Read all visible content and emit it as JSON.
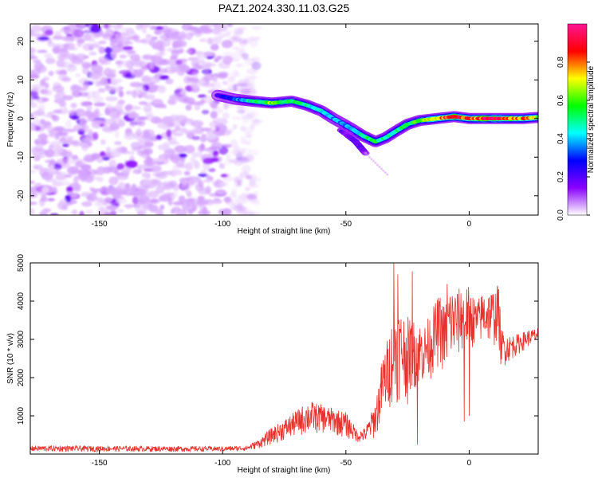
{
  "title": "PAZ1.2024.330.11.03.G25",
  "chart_data": [
    {
      "type": "heatmap",
      "xlabel": "Height of straight line (km)",
      "ylabel": "Frequency (Hz)",
      "xlim": [
        -178,
        28
      ],
      "ylim": [
        -25,
        24.5
      ],
      "xticks": [
        -150,
        -100,
        -50,
        0
      ],
      "yticks": [
        -20,
        -10,
        0,
        10,
        20
      ],
      "colorbar": {
        "label": "Normalized spectral amplitude",
        "range": [
          0,
          1
        ],
        "ticks": [
          "0.0",
          "0.2",
          "0.4",
          "0.6",
          "0.8"
        ],
        "colors": [
          "#ffffff",
          "#8a00ff",
          "#0000ff",
          "#00ffff",
          "#00ff00",
          "#ffff00",
          "#ff0000",
          "#ff1493"
        ]
      },
      "noise_region": {
        "x": [
          -178,
          -86
        ],
        "y": [
          -25,
          24.5
        ],
        "amplitude": [
          0.05,
          0.2
        ]
      },
      "ridge": [
        {
          "x": -102,
          "y": 6
        },
        {
          "x": -95,
          "y": 5
        },
        {
          "x": -88,
          "y": 4.5
        },
        {
          "x": -80,
          "y": 4
        },
        {
          "x": -72,
          "y": 4.5
        },
        {
          "x": -66,
          "y": 3.5
        },
        {
          "x": -60,
          "y": 2
        },
        {
          "x": -55,
          "y": 0
        },
        {
          "x": -48,
          "y": -2.5
        },
        {
          "x": -43,
          "y": -4.5
        },
        {
          "x": -38,
          "y": -6
        },
        {
          "x": -34,
          "y": -5
        },
        {
          "x": -29,
          "y": -3
        },
        {
          "x": -25,
          "y": -1.5
        },
        {
          "x": -20,
          "y": -0.5
        },
        {
          "x": -13,
          "y": 0
        },
        {
          "x": -6,
          "y": 0.5
        },
        {
          "x": 0,
          "y": 0
        },
        {
          "x": 8,
          "y": 0
        },
        {
          "x": 16,
          "y": 0
        },
        {
          "x": 22,
          "y": 0
        },
        {
          "x": 28,
          "y": 0.3
        }
      ],
      "ridge_amplitude": [
        0.2,
        0.3,
        0.45,
        0.6,
        0.5,
        0.45,
        0.4,
        0.35,
        0.35,
        0.45,
        0.5,
        0.45,
        0.45,
        0.5,
        0.55,
        0.7,
        0.85,
        0.75,
        0.9,
        0.8,
        0.75,
        0.6
      ],
      "side_branch": [
        {
          "x": -52,
          "y": -3
        },
        {
          "x": -46,
          "y": -6
        },
        {
          "x": -42,
          "y": -9
        }
      ]
    },
    {
      "type": "line",
      "xlabel": "Height of straight line (km)",
      "ylabel": "SNR (10 * v/v)",
      "xlim": [
        -178,
        28
      ],
      "ylim": [
        0,
        5000
      ],
      "xticks": [
        -150,
        -100,
        -50,
        0
      ],
      "yticks": [
        1000,
        2000,
        3000,
        4000,
        5000
      ],
      "color": "#e8312c",
      "envelope": {
        "x": [
          -178,
          -100,
          -90,
          -85,
          -80,
          -75,
          -70,
          -65,
          -60,
          -55,
          -50,
          -45,
          -42,
          -38,
          -35,
          -32,
          -30,
          -28,
          -25,
          -22,
          -18,
          -15,
          -12,
          -10,
          -8,
          -5,
          -3,
          0,
          3,
          6,
          9,
          12,
          13,
          16,
          20,
          24,
          28
        ],
        "low": [
          60,
          60,
          80,
          150,
          250,
          350,
          450,
          500,
          550,
          500,
          400,
          300,
          300,
          400,
          900,
          1200,
          1300,
          1400,
          1500,
          1700,
          1800,
          2000,
          2300,
          2000,
          2300,
          2400,
          2600,
          2700,
          2800,
          2900,
          2800,
          2800,
          2200,
          2400,
          2600,
          2800,
          2900
        ],
        "high": [
          220,
          200,
          220,
          400,
          700,
          900,
          1150,
          1400,
          1300,
          1200,
          1100,
          600,
          700,
          1400,
          2600,
          3300,
          4000,
          3800,
          3600,
          3500,
          3400,
          3800,
          4200,
          3900,
          4400,
          4300,
          4400,
          4400,
          4000,
          4300,
          4300,
          4400,
          3300,
          3100,
          3150,
          3250,
          3300
        ]
      },
      "spikes": [
        {
          "x": -30.5,
          "y": 4990
        },
        {
          "x": -29,
          "y": 4700
        },
        {
          "x": -23,
          "y": 4780
        },
        {
          "x": -25,
          "y": 1300
        },
        {
          "x": -21,
          "y": 250
        },
        {
          "x": -9,
          "y": 4450
        },
        {
          "x": -2,
          "y": 850
        },
        {
          "x": 0,
          "y": 1000
        },
        {
          "x": 11.5,
          "y": 4400
        }
      ]
    }
  ]
}
